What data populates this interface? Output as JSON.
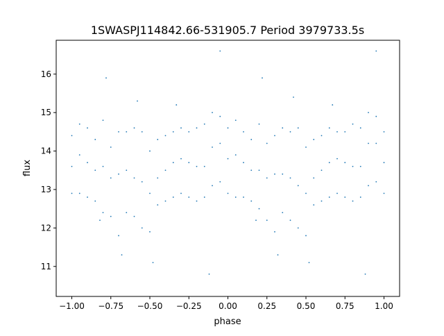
{
  "chart_data": {
    "type": "scatter",
    "title": "1SWASPJ114842.66-531905.7 Period 3979733.5s",
    "xlabel": "phase",
    "ylabel": "flux",
    "xlim": [
      -1.1,
      1.1
    ],
    "ylim": [
      10.22,
      16.88
    ],
    "xticks": [
      -1.0,
      -0.75,
      -0.5,
      -0.25,
      0.0,
      0.25,
      0.5,
      0.75,
      1.0
    ],
    "xtick_labels": [
      "−1.00",
      "−0.75",
      "−0.50",
      "−0.25",
      "0.00",
      "0.25",
      "0.50",
      "0.75",
      "1.00"
    ],
    "yticks": [
      11,
      12,
      13,
      14,
      15,
      16
    ],
    "ytick_labels": [
      "11",
      "12",
      "13",
      "14",
      "15",
      "16"
    ],
    "grid": false,
    "marker_color": "#1f77b4",
    "points": [
      [
        -1.0,
        13.6
      ],
      [
        -1.0,
        12.9
      ],
      [
        -1.0,
        14.4
      ],
      [
        -0.95,
        13.9
      ],
      [
        -0.95,
        12.9
      ],
      [
        -0.95,
        14.7
      ],
      [
        -0.9,
        13.7
      ],
      [
        -0.9,
        12.8
      ],
      [
        -0.9,
        14.6
      ],
      [
        -0.85,
        13.5
      ],
      [
        -0.85,
        12.7
      ],
      [
        -0.85,
        14.3
      ],
      [
        -0.8,
        13.6
      ],
      [
        -0.8,
        12.4
      ],
      [
        -0.8,
        14.8
      ],
      [
        -0.75,
        13.3
      ],
      [
        -0.75,
        12.3
      ],
      [
        -0.75,
        14.1
      ],
      [
        -0.7,
        13.4
      ],
      [
        -0.7,
        11.8
      ],
      [
        -0.7,
        14.5
      ],
      [
        -0.65,
        13.5
      ],
      [
        -0.65,
        12.4
      ],
      [
        -0.65,
        14.5
      ],
      [
        -0.6,
        13.3
      ],
      [
        -0.6,
        12.3
      ],
      [
        -0.6,
        14.6
      ],
      [
        -0.55,
        13.2
      ],
      [
        -0.55,
        12.0
      ],
      [
        -0.55,
        14.5
      ],
      [
        -0.5,
        12.9
      ],
      [
        -0.5,
        11.9
      ],
      [
        -0.5,
        14.0
      ],
      [
        -0.45,
        13.3
      ],
      [
        -0.45,
        12.6
      ],
      [
        -0.45,
        14.3
      ],
      [
        -0.4,
        13.5
      ],
      [
        -0.4,
        12.7
      ],
      [
        -0.4,
        14.4
      ],
      [
        -0.35,
        13.7
      ],
      [
        -0.35,
        12.8
      ],
      [
        -0.35,
        14.5
      ],
      [
        -0.3,
        13.8
      ],
      [
        -0.3,
        12.9
      ],
      [
        -0.3,
        14.6
      ],
      [
        -0.25,
        13.7
      ],
      [
        -0.25,
        12.8
      ],
      [
        -0.25,
        14.5
      ],
      [
        -0.2,
        13.6
      ],
      [
        -0.2,
        12.7
      ],
      [
        -0.2,
        14.6
      ],
      [
        -0.15,
        13.6
      ],
      [
        -0.15,
        12.8
      ],
      [
        -0.15,
        14.7
      ],
      [
        -0.1,
        14.1
      ],
      [
        -0.1,
        13.1
      ],
      [
        -0.1,
        15.0
      ],
      [
        -0.05,
        14.2
      ],
      [
        -0.05,
        13.2
      ],
      [
        -0.05,
        14.9
      ],
      [
        0.0,
        13.8
      ],
      [
        0.0,
        12.9
      ],
      [
        0.0,
        14.6
      ],
      [
        0.05,
        13.9
      ],
      [
        0.05,
        12.8
      ],
      [
        0.05,
        14.8
      ],
      [
        0.1,
        13.7
      ],
      [
        0.1,
        12.8
      ],
      [
        0.1,
        14.5
      ],
      [
        0.15,
        13.5
      ],
      [
        0.15,
        12.7
      ],
      [
        0.15,
        14.3
      ],
      [
        0.2,
        13.5
      ],
      [
        0.2,
        12.5
      ],
      [
        0.2,
        14.7
      ],
      [
        0.25,
        13.3
      ],
      [
        0.25,
        12.2
      ],
      [
        0.25,
        14.2
      ],
      [
        0.3,
        13.4
      ],
      [
        0.3,
        11.9
      ],
      [
        0.3,
        14.4
      ],
      [
        0.35,
        13.4
      ],
      [
        0.35,
        12.4
      ],
      [
        0.35,
        14.6
      ],
      [
        0.4,
        13.3
      ],
      [
        0.4,
        12.2
      ],
      [
        0.4,
        14.5
      ],
      [
        0.45,
        13.1
      ],
      [
        0.45,
        12.0
      ],
      [
        0.45,
        14.6
      ],
      [
        0.5,
        12.9
      ],
      [
        0.5,
        11.8
      ],
      [
        0.5,
        14.1
      ],
      [
        0.55,
        13.3
      ],
      [
        0.55,
        12.6
      ],
      [
        0.55,
        14.3
      ],
      [
        0.6,
        13.5
      ],
      [
        0.6,
        12.7
      ],
      [
        0.6,
        14.4
      ],
      [
        0.65,
        13.7
      ],
      [
        0.65,
        12.8
      ],
      [
        0.65,
        14.6
      ],
      [
        0.7,
        13.8
      ],
      [
        0.7,
        12.9
      ],
      [
        0.7,
        14.5
      ],
      [
        0.75,
        13.7
      ],
      [
        0.75,
        12.8
      ],
      [
        0.75,
        14.5
      ],
      [
        0.8,
        13.6
      ],
      [
        0.8,
        12.7
      ],
      [
        0.8,
        14.7
      ],
      [
        0.85,
        13.6
      ],
      [
        0.85,
        12.8
      ],
      [
        0.85,
        14.6
      ],
      [
        0.9,
        14.2
      ],
      [
        0.9,
        13.1
      ],
      [
        0.9,
        15.0
      ],
      [
        0.95,
        14.2
      ],
      [
        0.95,
        13.2
      ],
      [
        0.95,
        14.9
      ],
      [
        1.0,
        13.7
      ],
      [
        1.0,
        12.9
      ],
      [
        1.0,
        14.5
      ],
      [
        -0.78,
        15.9
      ],
      [
        0.22,
        15.9
      ],
      [
        -0.05,
        16.6
      ],
      [
        0.95,
        16.6
      ],
      [
        -0.68,
        11.3
      ],
      [
        0.32,
        11.3
      ],
      [
        -0.48,
        11.1
      ],
      [
        0.52,
        11.1
      ],
      [
        -0.12,
        10.8
      ],
      [
        0.88,
        10.8
      ],
      [
        -0.82,
        12.2
      ],
      [
        0.18,
        12.2
      ],
      [
        -0.58,
        15.3
      ],
      [
        0.42,
        15.4
      ],
      [
        -0.33,
        15.2
      ],
      [
        0.67,
        15.2
      ]
    ]
  }
}
